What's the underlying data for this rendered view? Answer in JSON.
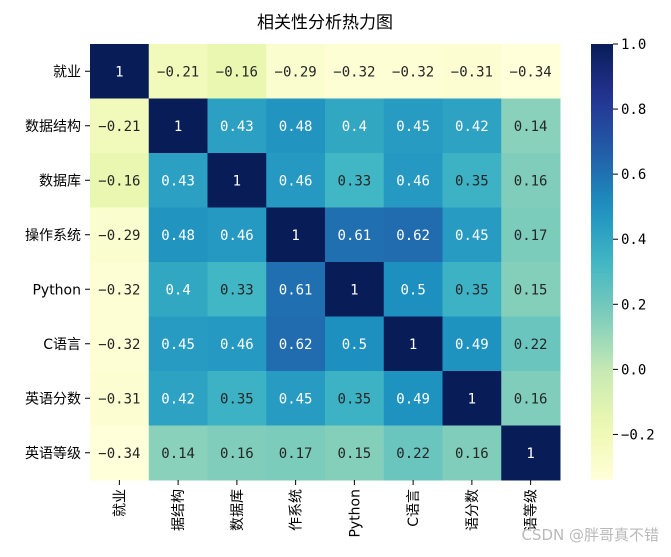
{
  "chart_data": {
    "type": "heatmap",
    "title": "相关性分析热力图",
    "row_labels": [
      "就业",
      "数据结构",
      "数据库",
      "操作系统",
      "Python",
      "C语言",
      "英语分数",
      "英语等级"
    ],
    "col_labels": [
      "就业",
      "据结构",
      "数据库",
      "作系统",
      "Python",
      "C语言",
      "语分数",
      "语等级"
    ],
    "values": [
      [
        1,
        -0.21,
        -0.16,
        -0.29,
        -0.32,
        -0.32,
        -0.31,
        -0.34
      ],
      [
        -0.21,
        1,
        0.43,
        0.48,
        0.4,
        0.45,
        0.42,
        0.14
      ],
      [
        -0.16,
        0.43,
        1,
        0.46,
        0.33,
        0.46,
        0.35,
        0.16
      ],
      [
        -0.29,
        0.48,
        0.46,
        1,
        0.61,
        0.62,
        0.45,
        0.17
      ],
      [
        -0.32,
        0.4,
        0.33,
        0.61,
        1,
        0.5,
        0.35,
        0.15
      ],
      [
        -0.32,
        0.45,
        0.46,
        0.62,
        0.5,
        1,
        0.49,
        0.22
      ],
      [
        -0.31,
        0.42,
        0.35,
        0.45,
        0.35,
        0.49,
        1,
        0.16
      ],
      [
        -0.34,
        0.14,
        0.16,
        0.17,
        0.15,
        0.22,
        0.16,
        1
      ]
    ],
    "colormap": "YlGnBu",
    "vmin": -0.34,
    "vmax": 1.0,
    "colorbar_ticks": [
      1.0,
      0.8,
      0.6,
      0.4,
      0.2,
      0.0,
      -0.2
    ],
    "colorbar_tick_labels": [
      "1.0",
      "0.8",
      "0.6",
      "0.4",
      "0.2",
      "0.0",
      "−0.2"
    ]
  },
  "watermark": "CSDN @胖哥真不错"
}
